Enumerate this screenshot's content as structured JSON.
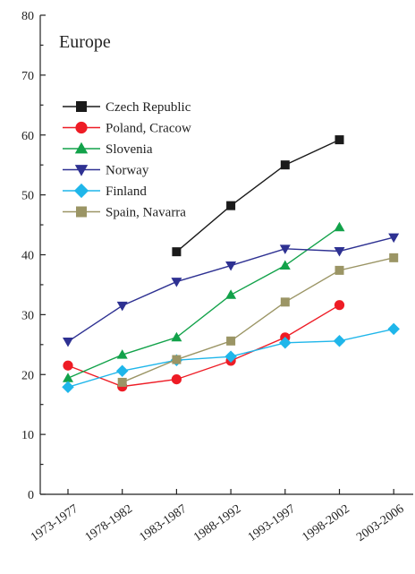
{
  "chart_data": {
    "type": "line",
    "title": "Europe",
    "xlabel": "",
    "ylabel": "",
    "ylim": [
      0,
      80
    ],
    "yticks": [
      "0",
      "10",
      "20",
      "30",
      "40",
      "50",
      "60",
      "70",
      "80"
    ],
    "categories": [
      "1973-1977",
      "1978-1982",
      "1983-1987",
      "1988-1992",
      "1993-1997",
      "1998-2002",
      "2003-2006"
    ],
    "grid": false,
    "legend_position": "top-left",
    "series": [
      {
        "name": "Czech Republic",
        "color": "#1a1a1a",
        "marker": "square",
        "values": [
          null,
          null,
          40.5,
          48.2,
          55.0,
          59.2,
          null
        ]
      },
      {
        "name": "Poland, Cracow",
        "color": "#ee1c25",
        "marker": "circle",
        "values": [
          21.5,
          18.0,
          19.2,
          22.3,
          26.2,
          31.6,
          null
        ]
      },
      {
        "name": "Slovenia",
        "color": "#12a24a",
        "marker": "triangle-up",
        "values": [
          19.4,
          23.3,
          26.2,
          33.3,
          38.2,
          44.6,
          null
        ]
      },
      {
        "name": "Norway",
        "color": "#2e3192",
        "marker": "triangle-down",
        "values": [
          25.5,
          31.5,
          35.5,
          38.2,
          41.0,
          40.6,
          42.9
        ]
      },
      {
        "name": "Finland",
        "color": "#1fb6ea",
        "marker": "diamond",
        "values": [
          17.9,
          20.6,
          22.4,
          23.0,
          25.3,
          25.6,
          27.6
        ]
      },
      {
        "name": "Spain, Navarra",
        "color": "#9b9565",
        "marker": "square",
        "values": [
          null,
          18.7,
          22.5,
          25.6,
          32.1,
          37.4,
          39.5
        ]
      }
    ]
  }
}
